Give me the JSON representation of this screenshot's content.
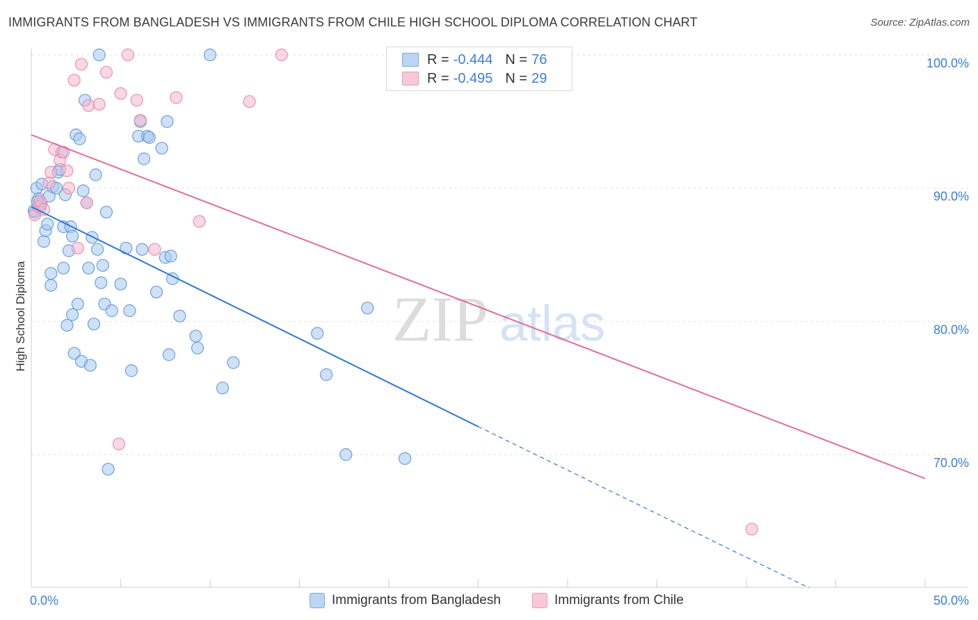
{
  "title": "IMMIGRANTS FROM BANGLADESH VS IMMIGRANTS FROM CHILE HIGH SCHOOL DIPLOMA CORRELATION CHART",
  "source": "Source: ZipAtlas.com",
  "watermark": {
    "zip": "ZIP",
    "atlas": "atlas"
  },
  "legend": {
    "rows": [
      {
        "r_label": "R =",
        "r_value": "-0.444",
        "n_label": "N =",
        "n_value": "76"
      },
      {
        "r_label": "R =",
        "r_value": "-0.495",
        "n_label": "N =",
        "n_value": "29"
      }
    ]
  },
  "colors": {
    "bangladesh_fill": "#a8c8f0",
    "bangladesh_stroke": "#6a9fdc",
    "bangladesh_line": "#2f76d2",
    "chile_fill": "#f4b8cc",
    "chile_stroke": "#e890ae",
    "chile_line": "#e06c98",
    "tick_label": "#3b7dd8",
    "grid": "#e2e2e2"
  },
  "chart_data": {
    "type": "scatter",
    "title": "IMMIGRANTS FROM BANGLADESH VS IMMIGRANTS FROM CHILE HIGH SCHOOL DIPLOMA CORRELATION CHART",
    "xlabel": "",
    "ylabel": "High School Diploma",
    "xlim": [
      0,
      50
    ],
    "ylim": [
      60,
      102.5
    ],
    "x_tick_labels": [
      "0.0%",
      "50.0%"
    ],
    "y_ticks": [
      70,
      80,
      90,
      100
    ],
    "y_tick_labels": [
      "70.0%",
      "80.0%",
      "90.0%",
      "100.0%"
    ],
    "grid": true,
    "legend_position": "bottom",
    "series": [
      {
        "name": "Immigrants from Bangladesh",
        "r": -0.444,
        "n": 76,
        "trend": {
          "x0": 0,
          "y0": 88.6,
          "x1": 25,
          "y1": 72.1,
          "dashed_to_x": 43.5,
          "dashed_to_y": 60
        },
        "points": [
          [
            0.2,
            88.2
          ],
          [
            0.3,
            90.0
          ],
          [
            0.4,
            89.2
          ],
          [
            0.5,
            88.6
          ],
          [
            0.6,
            90.3
          ],
          [
            0.7,
            86.0
          ],
          [
            0.8,
            86.8
          ],
          [
            0.9,
            87.3
          ],
          [
            1.0,
            89.4
          ],
          [
            1.1,
            83.6
          ],
          [
            1.1,
            82.7
          ],
          [
            1.2,
            90.1
          ],
          [
            1.4,
            90.0
          ],
          [
            1.5,
            91.2
          ],
          [
            1.6,
            91.4
          ],
          [
            1.7,
            92.7
          ],
          [
            1.8,
            84.0
          ],
          [
            1.8,
            87.1
          ],
          [
            1.9,
            89.5
          ],
          [
            2.0,
            79.7
          ],
          [
            2.1,
            85.3
          ],
          [
            2.2,
            87.1
          ],
          [
            2.3,
            80.5
          ],
          [
            2.3,
            86.4
          ],
          [
            2.4,
            77.6
          ],
          [
            2.5,
            94.0
          ],
          [
            2.6,
            81.3
          ],
          [
            2.7,
            93.7
          ],
          [
            2.8,
            77.0
          ],
          [
            2.9,
            89.8
          ],
          [
            3.0,
            96.6
          ],
          [
            3.1,
            88.9
          ],
          [
            3.2,
            84.0
          ],
          [
            3.3,
            76.7
          ],
          [
            3.4,
            86.3
          ],
          [
            3.5,
            79.8
          ],
          [
            3.6,
            91.0
          ],
          [
            3.7,
            85.4
          ],
          [
            3.8,
            100.0
          ],
          [
            3.9,
            82.9
          ],
          [
            4.0,
            84.2
          ],
          [
            4.1,
            81.3
          ],
          [
            4.2,
            88.2
          ],
          [
            4.3,
            68.9
          ],
          [
            4.5,
            80.8
          ],
          [
            5.0,
            82.8
          ],
          [
            5.3,
            85.5
          ],
          [
            5.5,
            80.8
          ],
          [
            5.6,
            76.3
          ],
          [
            6.0,
            93.9
          ],
          [
            6.1,
            95.0
          ],
          [
            6.3,
            92.2
          ],
          [
            6.2,
            85.4
          ],
          [
            6.5,
            93.9
          ],
          [
            6.6,
            93.8
          ],
          [
            7.0,
            82.2
          ],
          [
            7.3,
            93.0
          ],
          [
            7.5,
            84.8
          ],
          [
            7.6,
            95.0
          ],
          [
            7.7,
            77.5
          ],
          [
            7.8,
            84.9
          ],
          [
            7.9,
            83.2
          ],
          [
            8.3,
            80.4
          ],
          [
            9.2,
            78.9
          ],
          [
            9.3,
            78.0
          ],
          [
            10.0,
            100.0
          ],
          [
            10.7,
            75.0
          ],
          [
            11.3,
            76.9
          ],
          [
            16.0,
            79.1
          ],
          [
            16.5,
            76.0
          ],
          [
            17.6,
            70.0
          ],
          [
            18.8,
            81.0
          ],
          [
            20.9,
            69.7
          ],
          [
            0.15,
            88.3
          ],
          [
            0.35,
            89.0
          ],
          [
            0.55,
            88.8
          ]
        ]
      },
      {
        "name": "Immigrants from Chile",
        "r": -0.495,
        "n": 29,
        "trend": {
          "x0": 0,
          "y0": 94.0,
          "x1": 50,
          "y1": 68.2
        },
        "points": [
          [
            0.2,
            88.0
          ],
          [
            0.4,
            88.6
          ],
          [
            0.5,
            89.0
          ],
          [
            0.7,
            88.4
          ],
          [
            1.0,
            90.4
          ],
          [
            1.1,
            91.2
          ],
          [
            1.3,
            92.9
          ],
          [
            1.6,
            92.1
          ],
          [
            1.8,
            92.7
          ],
          [
            2.0,
            91.3
          ],
          [
            2.1,
            90.0
          ],
          [
            2.4,
            98.1
          ],
          [
            2.6,
            85.5
          ],
          [
            2.8,
            99.3
          ],
          [
            3.1,
            88.9
          ],
          [
            3.2,
            96.2
          ],
          [
            3.8,
            96.3
          ],
          [
            4.2,
            98.7
          ],
          [
            4.9,
            70.8
          ],
          [
            5.0,
            97.1
          ],
          [
            5.4,
            100.0
          ],
          [
            5.9,
            96.6
          ],
          [
            6.1,
            95.1
          ],
          [
            6.9,
            85.4
          ],
          [
            8.1,
            96.8
          ],
          [
            9.4,
            87.5
          ],
          [
            12.2,
            96.5
          ],
          [
            14.0,
            100.0
          ],
          [
            40.3,
            64.4
          ]
        ]
      }
    ]
  }
}
